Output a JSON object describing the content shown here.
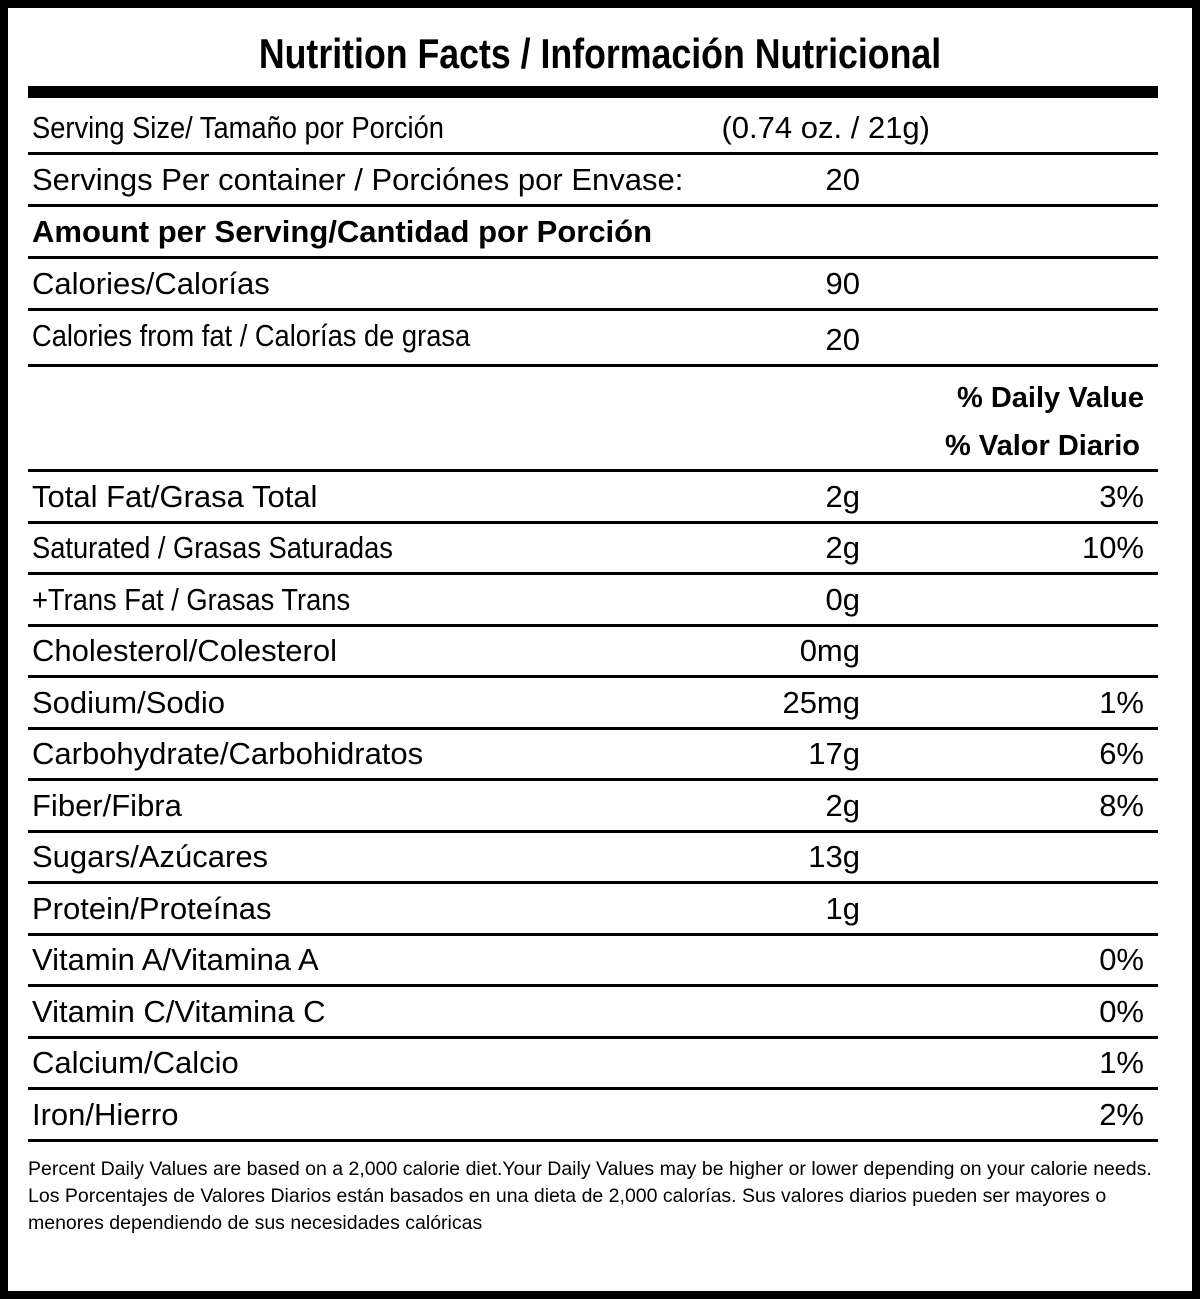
{
  "title": "Nutrition Facts / Información Nutricional",
  "serving_size": {
    "label": "Serving Size/ Tamaño por Porción",
    "value": "(0.74 oz. / 21g)"
  },
  "servings": {
    "label": "Servings Per container / Porciónes por Envase:",
    "value": "20"
  },
  "amount_header": "Amount per Serving/Cantidad por Porción",
  "calories": {
    "label": "Calories/Calorías",
    "value": "90"
  },
  "calories_fat": {
    "label": "Calories from fat / Calorías de grasa",
    "value": "20"
  },
  "dv_header": [
    "% Daily Value",
    "% Valor Diario"
  ],
  "nutrients": [
    {
      "label": "Total Fat/Grasa Total",
      "amount": "2g",
      "dv": "3%"
    },
    {
      "label": "Saturated / Grasas Saturadas",
      "amount": "2g",
      "dv": "10%"
    },
    {
      "label": "+Trans Fat / Grasas Trans",
      "amount": "0g",
      "dv": ""
    },
    {
      "label": "Cholesterol/Colesterol",
      "amount": "0mg",
      "dv": ""
    },
    {
      "label": "Sodium/Sodio",
      "amount": "25mg",
      "dv": "1%"
    },
    {
      "label": "Carbohydrate/Carbohidratos",
      "amount": "17g",
      "dv": "6%"
    },
    {
      "label": "Fiber/Fibra",
      "amount": "2g",
      "dv": "8%"
    },
    {
      "label": "Sugars/Azúcares",
      "amount": "13g",
      "dv": ""
    },
    {
      "label": "Protein/Proteínas",
      "amount": "1g",
      "dv": ""
    },
    {
      "label": "Vitamin A/Vitamina A",
      "amount": "",
      "dv": "0%"
    },
    {
      "label": "Vitamin C/Vitamina C",
      "amount": "",
      "dv": "0%"
    },
    {
      "label": "Calcium/Calcio",
      "amount": "",
      "dv": "1%"
    },
    {
      "label": "Iron/Hierro",
      "amount": "",
      "dv": "2%"
    }
  ],
  "footnote_en": "Percent Daily Values are based on a 2,000 calorie diet.Your Daily Values may be higher or lower depending on your calorie needs.",
  "footnote_es": "Los Porcentajes de Valores Diarios están basados en una dieta de 2,000 calorías. Sus valores diarios pueden ser mayores o menores dependiendo de sus necesidades calóricas"
}
